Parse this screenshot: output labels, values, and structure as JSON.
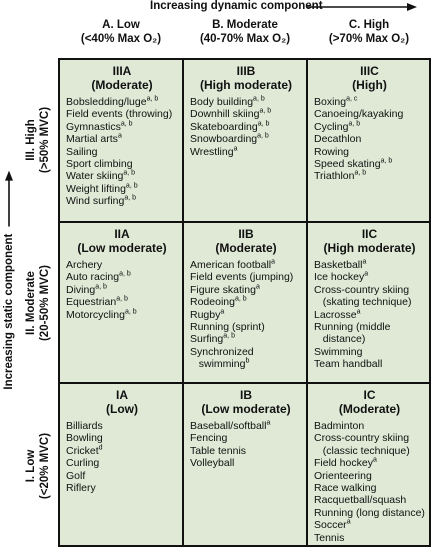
{
  "axes": {
    "x_label": "Increasing dynamic component",
    "y_label": "Increasing static component"
  },
  "columns": [
    {
      "line1": "A. Low",
      "line2": "(<40% Max O₂)"
    },
    {
      "line1": "B. Moderate",
      "line2": "(40-70% Max O₂)"
    },
    {
      "line1": "C. High",
      "line2": "(>70% Max O₂)"
    }
  ],
  "rows": [
    {
      "line1": "III. High",
      "line2": "(>50% MVC)"
    },
    {
      "line1": "II. Moderate",
      "line2": "(20-50% MVC)"
    },
    {
      "line1": "I. Low",
      "line2": "(<20% MVC)"
    }
  ],
  "cells": [
    {
      "code": "IIIA",
      "level": "(Moderate)",
      "sports": [
        {
          "name": "Bobsledding/luge",
          "sup": "a, b"
        },
        {
          "name": "Field events (throwing)",
          "sup": ""
        },
        {
          "name": "Gymnastics",
          "sup": "a, b"
        },
        {
          "name": "Martial arts",
          "sup": "a"
        },
        {
          "name": "Sailing",
          "sup": ""
        },
        {
          "name": "Sport climbing",
          "sup": ""
        },
        {
          "name": "Water skiing",
          "sup": "a, b"
        },
        {
          "name": "Weight lifting",
          "sup": "a, b"
        },
        {
          "name": "Wind surfing",
          "sup": "a, b"
        }
      ]
    },
    {
      "code": "IIIB",
      "level": "(High moderate)",
      "sports": [
        {
          "name": "Body building",
          "sup": "a, b"
        },
        {
          "name": "Downhill skiing",
          "sup": "a, b"
        },
        {
          "name": "Skateboarding",
          "sup": "a, b"
        },
        {
          "name": "Snowboarding",
          "sup": "a, b"
        },
        {
          "name": "Wrestling",
          "sup": "a"
        }
      ]
    },
    {
      "code": "IIIC",
      "level": "(High)",
      "sports": [
        {
          "name": "Boxing",
          "sup": "a, c"
        },
        {
          "name": "Canoeing/kayaking",
          "sup": ""
        },
        {
          "name": "Cycling",
          "sup": "a, b"
        },
        {
          "name": "Decathlon",
          "sup": ""
        },
        {
          "name": "Rowing",
          "sup": ""
        },
        {
          "name": "Speed skating",
          "sup": "a, b"
        },
        {
          "name": "Triathlon",
          "sup": "a, b"
        }
      ]
    },
    {
      "code": "IIA",
      "level": "(Low moderate)",
      "sports": [
        {
          "name": "Archery",
          "sup": ""
        },
        {
          "name": "Auto racing",
          "sup": "a, b"
        },
        {
          "name": "Diving",
          "sup": "a, b"
        },
        {
          "name": "Equestrian",
          "sup": "a, b"
        },
        {
          "name": "Motorcycling",
          "sup": "a, b"
        }
      ]
    },
    {
      "code": "IIB",
      "level": "(Moderate)",
      "sports": [
        {
          "name": "American football",
          "sup": "a"
        },
        {
          "name": "Field events (jumping)",
          "sup": ""
        },
        {
          "name": "Figure skating",
          "sup": "a"
        },
        {
          "name": "Rodeoing",
          "sup": "a, b"
        },
        {
          "name": "Rugby",
          "sup": "a"
        },
        {
          "name": "Running (sprint)",
          "sup": ""
        },
        {
          "name": "Surfing",
          "sup": "a, b"
        },
        {
          "name": "Synchronized",
          "sup": ""
        },
        {
          "name": "   swimming",
          "sup": "b"
        }
      ]
    },
    {
      "code": "IIC",
      "level": "(High moderate)",
      "sports": [
        {
          "name": "Basketball",
          "sup": "a"
        },
        {
          "name": "Ice hockey",
          "sup": "a"
        },
        {
          "name": "Cross-country skiing",
          "sup": ""
        },
        {
          "name": "   (skating technique)",
          "sup": ""
        },
        {
          "name": "Lacrosse",
          "sup": "a"
        },
        {
          "name": "Running (middle",
          "sup": ""
        },
        {
          "name": "   distance)",
          "sup": ""
        },
        {
          "name": "Swimming",
          "sup": ""
        },
        {
          "name": "Team handball",
          "sup": ""
        }
      ]
    },
    {
      "code": "IA",
      "level": "(Low)",
      "sports": [
        {
          "name": "Billiards",
          "sup": ""
        },
        {
          "name": "Bowling",
          "sup": ""
        },
        {
          "name": "Cricket",
          "sup": "d"
        },
        {
          "name": "Curling",
          "sup": ""
        },
        {
          "name": "Golf",
          "sup": ""
        },
        {
          "name": "Riflery",
          "sup": ""
        }
      ]
    },
    {
      "code": "IB",
      "level": "(Low moderate)",
      "sports": [
        {
          "name": "Baseball/softball",
          "sup": "a"
        },
        {
          "name": "Fencing",
          "sup": ""
        },
        {
          "name": "Table tennis",
          "sup": ""
        },
        {
          "name": "Volleyball",
          "sup": ""
        }
      ]
    },
    {
      "code": "IC",
      "level": "(Moderate)",
      "sports": [
        {
          "name": "Badminton",
          "sup": ""
        },
        {
          "name": "Cross-country skiing",
          "sup": ""
        },
        {
          "name": "   (classic technique)",
          "sup": ""
        },
        {
          "name": "Field hockey",
          "sup": "a"
        },
        {
          "name": "Orienteering",
          "sup": ""
        },
        {
          "name": "Race walking",
          "sup": ""
        },
        {
          "name": "Racquetball/squash",
          "sup": ""
        },
        {
          "name": "Running (long distance)",
          "sup": ""
        },
        {
          "name": "Soccer",
          "sup": "a"
        },
        {
          "name": "Tennis",
          "sup": ""
        }
      ]
    }
  ]
}
